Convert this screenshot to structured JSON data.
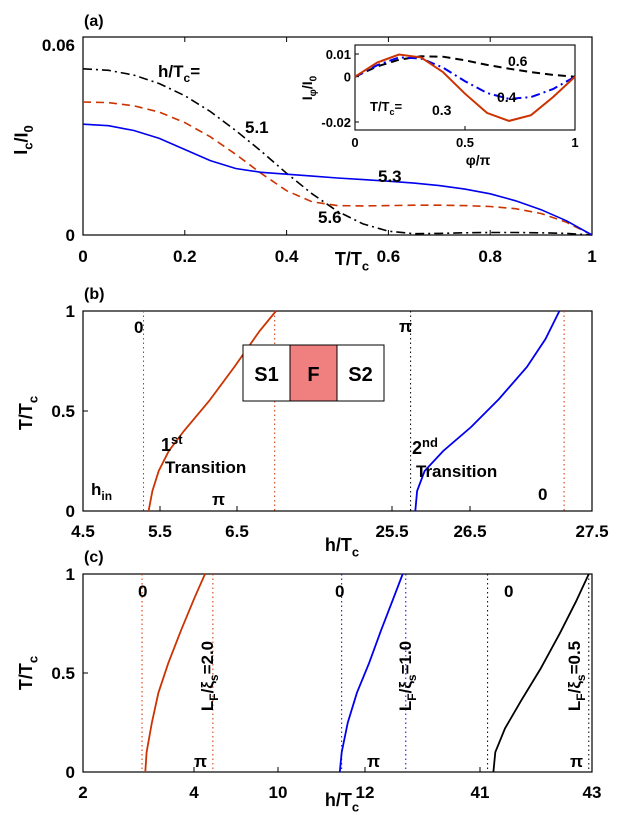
{
  "colors": {
    "red": "#cc3300",
    "blue": "#0000ee",
    "black": "#000000",
    "box_f": "#f08080"
  },
  "chart_data": [
    {
      "panel": "(a)",
      "type": "line",
      "xlabel": "T/T",
      "xlabel_sub": "c",
      "ylabel": "I",
      "ylabel_sub": "c",
      "ylabel_tail": "/I",
      "ylabel_sub2": "0",
      "xlim": [
        0,
        1
      ],
      "ylim": [
        0,
        0.06
      ],
      "xticks": [
        "0",
        "0.2",
        "0.4",
        "0.6",
        "0.8",
        "1"
      ],
      "yticks": [
        "0",
        "0.06"
      ],
      "legend_title": "h/T",
      "legend_title_sub": "c",
      "legend_title_tail": "=",
      "series": [
        {
          "label": "5.1",
          "style": "dashdot",
          "color": "#000000",
          "x": [
            0,
            0.05,
            0.1,
            0.15,
            0.2,
            0.25,
            0.3,
            0.35,
            0.4,
            0.45,
            0.5,
            0.55,
            0.6,
            0.65,
            0.7,
            0.75,
            0.8,
            0.85,
            0.9,
            0.95,
            1.0
          ],
          "y": [
            0.0525,
            0.052,
            0.0505,
            0.0478,
            0.044,
            0.039,
            0.033,
            0.0265,
            0.0195,
            0.013,
            0.0075,
            0.0035,
            0.0012,
            0.0004,
            0.0005,
            0.0007,
            0.0008,
            0.0008,
            0.0007,
            0.0005,
            0.0
          ]
        },
        {
          "label": "5.6",
          "style": "dashed",
          "color": "#cc3300",
          "x": [
            0,
            0.05,
            0.1,
            0.15,
            0.2,
            0.25,
            0.3,
            0.35,
            0.4,
            0.45,
            0.5,
            0.55,
            0.6,
            0.65,
            0.7,
            0.75,
            0.8,
            0.85,
            0.9,
            0.95,
            1.0
          ],
          "y": [
            0.042,
            0.0418,
            0.0408,
            0.0388,
            0.0355,
            0.031,
            0.0255,
            0.0195,
            0.014,
            0.0105,
            0.0093,
            0.0092,
            0.0093,
            0.0094,
            0.0094,
            0.0093,
            0.009,
            0.0083,
            0.0068,
            0.004,
            0.0
          ]
        },
        {
          "label": "5.3",
          "style": "solid",
          "color": "#0000ee",
          "x": [
            0,
            0.05,
            0.1,
            0.15,
            0.2,
            0.25,
            0.3,
            0.35,
            0.4,
            0.45,
            0.5,
            0.55,
            0.6,
            0.65,
            0.7,
            0.75,
            0.8,
            0.85,
            0.9,
            0.95,
            1.0
          ],
          "y": [
            0.035,
            0.0345,
            0.033,
            0.0305,
            0.027,
            0.0235,
            0.021,
            0.0198,
            0.0192,
            0.0186,
            0.018,
            0.0175,
            0.017,
            0.0164,
            0.0156,
            0.0145,
            0.013,
            0.0108,
            0.008,
            0.0045,
            0.0
          ]
        }
      ],
      "inset": {
        "xlabel": "φ/π",
        "ylabel": "I",
        "ylabel_sub": "φ",
        "ylabel_tail": "/I",
        "ylabel_sub2": "0",
        "xlim": [
          0,
          1
        ],
        "ylim": [
          -0.02,
          0.01
        ],
        "xticks": [
          "0",
          "0.5",
          "1"
        ],
        "yticks": [
          "0.01",
          "0",
          "-0.02"
        ],
        "legend_title": "T/T",
        "legend_title_sub": "c",
        "legend_title_tail": "=",
        "series": [
          {
            "label": "0.6",
            "style": "dashed",
            "color": "#000000",
            "x": [
              0,
              0.1,
              0.2,
              0.3,
              0.4,
              0.5,
              0.6,
              0.7,
              0.8,
              0.9,
              1.0
            ],
            "y": [
              0.0,
              0.0045,
              0.0075,
              0.009,
              0.0088,
              0.0072,
              0.0052,
              0.0035,
              0.002,
              0.0008,
              0.0
            ]
          },
          {
            "label": "0.4",
            "style": "dashdot",
            "color": "#0000ee",
            "x": [
              0,
              0.1,
              0.2,
              0.3,
              0.4,
              0.5,
              0.6,
              0.7,
              0.8,
              0.9,
              1.0
            ],
            "y": [
              0.0,
              0.005,
              0.0085,
              0.008,
              0.004,
              -0.002,
              -0.0072,
              -0.0098,
              -0.009,
              -0.0055,
              0.0
            ]
          },
          {
            "label": "0.3",
            "style": "solid",
            "color": "#cc3300",
            "x": [
              0,
              0.1,
              0.2,
              0.3,
              0.4,
              0.5,
              0.6,
              0.7,
              0.8,
              0.9,
              1.0
            ],
            "y": [
              0.0,
              0.0062,
              0.0098,
              0.0085,
              0.002,
              -0.0075,
              -0.016,
              -0.0195,
              -0.017,
              -0.009,
              0.0
            ]
          }
        ]
      }
    },
    {
      "panel": "(b)",
      "type": "line",
      "xlabel": "h/T",
      "xlabel_sub": "c",
      "ylabel": "T/T",
      "ylabel_sub": "c",
      "ylim": [
        0,
        1
      ],
      "yticks": [
        "0",
        "0.5",
        "1"
      ],
      "xticks": [
        "4.5",
        "5.5",
        "6.5",
        "25.5",
        "26.5",
        "27.5"
      ],
      "segments": [
        {
          "xlim": [
            4.5,
            6.95
          ]
        },
        {
          "xlim": [
            25.35,
            27.5
          ]
        }
      ],
      "box": [
        "S1",
        "F",
        "S2"
      ],
      "labels": {
        "zero_a": "0",
        "pi_a": "π",
        "h_in": "h",
        "h_in_sub": "in",
        "pi_b": "π",
        "zero_b": "0",
        "first": "1",
        "first_sup": "st",
        "first_line2": "Transition",
        "second": "2",
        "second_sup": "nd",
        "second_line2": "Transition"
      },
      "vlines": [
        {
          "segment": 0,
          "x": 4.98,
          "color": "#cc3300"
        },
        {
          "segment": 0,
          "x": 6.02,
          "color": "#cc3300"
        },
        {
          "segment": 1,
          "x": 25.55,
          "color": "#000000"
        },
        {
          "segment": 1,
          "x": 27.2,
          "color": "#cc3300"
        }
      ],
      "series": [
        {
          "segment": 0,
          "color": "#cc3300",
          "x": [
            5.02,
            5.05,
            5.1,
            5.18,
            5.3,
            5.5,
            5.7,
            5.9,
            6.03
          ],
          "y": [
            0.0,
            0.1,
            0.2,
            0.3,
            0.4,
            0.55,
            0.72,
            0.9,
            1.0
          ]
        },
        {
          "segment": 1,
          "color": "#0000ee",
          "x": [
            25.6,
            25.62,
            25.7,
            25.9,
            26.2,
            26.5,
            26.8,
            27.0,
            27.15
          ],
          "y": [
            0.0,
            0.1,
            0.2,
            0.3,
            0.42,
            0.56,
            0.72,
            0.86,
            1.0
          ]
        }
      ]
    },
    {
      "panel": "(c)",
      "type": "line",
      "xlabel": "h/T",
      "xlabel_sub": "c",
      "ylabel": "T/T",
      "ylabel_sub": "c",
      "ylim": [
        0,
        1
      ],
      "yticks": [
        "0",
        "0.5",
        "1"
      ],
      "xticks": [
        "2",
        "4",
        "10",
        "12",
        "41",
        "43"
      ],
      "segments": [
        {
          "xlim": [
            2,
            4.5
          ]
        },
        {
          "xlim": [
            9.4,
            12.2
          ]
        },
        {
          "xlim": [
            40.3,
            43
          ]
        }
      ],
      "labels": {
        "zero": [
          "0",
          "0",
          "0"
        ],
        "pi": [
          "π",
          "π",
          "π"
        ],
        "lf": [
          "L",
          "L",
          "L"
        ],
        "lf_sub": [
          "F",
          "F",
          "F"
        ],
        "lf_mid": [
          "/ξ",
          "/ξ",
          "/ξ"
        ],
        "lf_sub2": [
          "s",
          "s",
          "s"
        ],
        "lf_val": [
          "=2.0",
          "=1.0",
          "=0.5"
        ]
      },
      "vlines": [
        {
          "segment": 0,
          "x": 2.9,
          "color": "#cc3300"
        },
        {
          "segment": 0,
          "x": 3.98,
          "color": "#cc3300"
        },
        {
          "segment": 1,
          "x": 10.95,
          "color": "#0000ee"
        },
        {
          "segment": 1,
          "x": 12.0,
          "color": "#0000ee"
        },
        {
          "segment": 2,
          "x": 41.38,
          "color": "#000000"
        },
        {
          "segment": 2,
          "x": 42.95,
          "color": "#000000"
        }
      ],
      "series": [
        {
          "segment": 0,
          "color": "#cc3300",
          "x": [
            2.95,
            2.97,
            3.05,
            3.15,
            3.3,
            3.5,
            3.7,
            3.86
          ],
          "y": [
            0.0,
            0.1,
            0.25,
            0.4,
            0.55,
            0.72,
            0.88,
            1.0
          ]
        },
        {
          "segment": 1,
          "color": "#0000ee",
          "x": [
            10.92,
            10.95,
            11.05,
            11.2,
            11.4,
            11.6,
            11.8,
            11.95
          ],
          "y": [
            0.0,
            0.1,
            0.25,
            0.4,
            0.55,
            0.72,
            0.88,
            1.0
          ]
        },
        {
          "segment": 2,
          "color": "#000000",
          "x": [
            41.47,
            41.5,
            41.65,
            41.9,
            42.2,
            42.5,
            42.75,
            42.95
          ],
          "y": [
            0.0,
            0.1,
            0.22,
            0.36,
            0.52,
            0.7,
            0.86,
            1.0
          ]
        }
      ]
    }
  ]
}
